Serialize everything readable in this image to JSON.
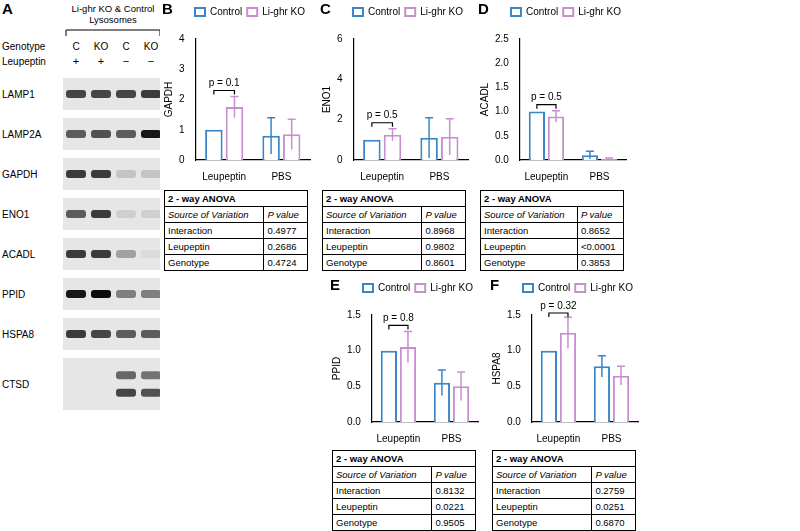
{
  "blot": {
    "panel": "A",
    "header": [
      "Li-ghr KO & Control",
      "Lysosomes"
    ],
    "row_labels": [
      "Genotype",
      "Leupeptin"
    ],
    "genotype": [
      "C",
      "KO",
      "C",
      "KO"
    ],
    "leupeptin": [
      "+",
      "+",
      "−",
      "−"
    ],
    "proteins": [
      {
        "name": "LAMP1",
        "bands": [
          [
            0.7,
            0.7,
            0.7,
            0.75
          ]
        ]
      },
      {
        "name": "LAMP2A",
        "bands": [
          [
            0.6,
            0.65,
            0.6,
            0.9
          ]
        ]
      },
      {
        "name": "GAPDH",
        "bands": [
          [
            0.75,
            0.75,
            0.15,
            0.15
          ]
        ]
      },
      {
        "name": "ENO1",
        "bands": [
          [
            0.6,
            0.75,
            0.1,
            0.1
          ]
        ]
      },
      {
        "name": "ACADL",
        "bands": [
          [
            0.75,
            0.75,
            0.3,
            0.05
          ]
        ]
      },
      {
        "name": "PPID",
        "bands": [
          [
            0.9,
            0.95,
            0.45,
            0.45
          ]
        ]
      },
      {
        "name": "HSPA8",
        "bands": [
          [
            0.75,
            0.7,
            0.6,
            0.6
          ]
        ]
      },
      {
        "name": "CTSD",
        "bands": [
          [
            0,
            0,
            0.55,
            0.5
          ],
          [
            0,
            0,
            0.7,
            0.65
          ]
        ]
      }
    ]
  },
  "chart_data": [
    {
      "type": "bar",
      "panel": "B",
      "ylabel": "GAPDH",
      "categories": [
        "Leupeptin",
        "PBS"
      ],
      "series": [
        {
          "name": "Control",
          "color": "#3a86c8",
          "values": [
            1.0,
            0.8
          ],
          "errors": [
            0,
            0.6
          ]
        },
        {
          "name": "Li-ghr KO",
          "color": "#c88fd0",
          "values": [
            1.75,
            0.85
          ],
          "errors": [
            0.35,
            0.5
          ]
        }
      ],
      "ylim": [
        0,
        4
      ],
      "yticks": [
        0,
        1,
        2,
        3,
        4
      ],
      "grid": false,
      "legend": "top right",
      "annotation": {
        "text": "p = 0.1",
        "category": "Leupeptin"
      },
      "anova": {
        "title": "2 - way ANOVA",
        "header": [
          "Source of Variation",
          "P value"
        ],
        "rows": [
          [
            "Interaction",
            "0.4977"
          ],
          [
            "Leupeptin",
            "0.2686"
          ],
          [
            "Genotype",
            "0.4724"
          ]
        ]
      }
    },
    {
      "type": "bar",
      "panel": "C",
      "ylabel": "ENO1",
      "categories": [
        "Leupeptin",
        "PBS"
      ],
      "series": [
        {
          "name": "Control",
          "color": "#3a86c8",
          "values": [
            1.0,
            1.1
          ],
          "errors": [
            0,
            1.0
          ]
        },
        {
          "name": "Li-ghr KO",
          "color": "#c88fd0",
          "values": [
            1.25,
            1.15
          ],
          "errors": [
            0.3,
            0.9
          ]
        }
      ],
      "ylim": [
        0,
        6
      ],
      "yticks": [
        0,
        2,
        4,
        6
      ],
      "grid": false,
      "legend": "top right",
      "annotation": {
        "text": "p = 0.5",
        "category": "Leupeptin"
      },
      "anova": {
        "title": "2 - way ANOVA",
        "header": [
          "Source of Variation",
          "P value"
        ],
        "rows": [
          [
            "Interaction",
            "0.8968"
          ],
          [
            "Leupeptin",
            "0.9802"
          ],
          [
            "Genotype",
            "0.8601"
          ]
        ]
      }
    },
    {
      "type": "bar",
      "panel": "D",
      "ylabel": "ACADL",
      "categories": [
        "Leupeptin",
        "PBS"
      ],
      "series": [
        {
          "name": "Control",
          "color": "#3a86c8",
          "values": [
            1.0,
            0.1
          ],
          "errors": [
            0,
            0.08
          ]
        },
        {
          "name": "Li-ghr KO",
          "color": "#c88fd0",
          "values": [
            0.9,
            0.02
          ],
          "errors": [
            0.12,
            0.02
          ]
        }
      ],
      "ylim": [
        0,
        2.5
      ],
      "yticks": [
        {
          "value": 0,
          "label": "0.0"
        },
        0.5,
        {
          "value": 1,
          "label": "1.0"
        },
        1.5,
        {
          "value": 2,
          "label": "2.0"
        },
        2.5
      ],
      "grid": false,
      "legend": "top right",
      "annotation": {
        "text": "p = 0.5",
        "category": "Leupeptin"
      },
      "anova": {
        "title": "2 - way ANOVA",
        "header": [
          "Source of Variation",
          "P value"
        ],
        "rows": [
          [
            "Interaction",
            "0.8652"
          ],
          [
            "Leupeptin",
            "<0.0001"
          ],
          [
            "Genotype",
            "0.3853"
          ]
        ]
      }
    },
    {
      "type": "bar",
      "panel": "E",
      "ylabel": "PPID",
      "categories": [
        "Leupeptin",
        "PBS"
      ],
      "series": [
        {
          "name": "Control",
          "color": "#3a86c8",
          "values": [
            1.0,
            0.55
          ],
          "errors": [
            0,
            0.18
          ]
        },
        {
          "name": "Li-ghr KO",
          "color": "#c88fd0",
          "values": [
            1.05,
            0.5
          ],
          "errors": [
            0.22,
            0.2
          ]
        }
      ],
      "ylim": [
        0,
        1.5
      ],
      "yticks": [
        {
          "value": 0,
          "label": "0.0"
        },
        0.5,
        {
          "value": 1,
          "label": "1.0"
        },
        1.5
      ],
      "grid": false,
      "legend": "top right",
      "annotation": {
        "text": "p = 0.8",
        "category": "Leupeptin"
      },
      "anova": {
        "title": "2 - way ANOVA",
        "header": [
          "Source of Variation",
          "P value"
        ],
        "rows": [
          [
            "Interaction",
            "0.8132"
          ],
          [
            "Leupeptin",
            "0.0221"
          ],
          [
            "Genotype",
            "0.9505"
          ]
        ]
      }
    },
    {
      "type": "bar",
      "panel": "F",
      "ylabel": "HSPA8",
      "categories": [
        "Leupeptin",
        "PBS"
      ],
      "series": [
        {
          "name": "Control",
          "color": "#3a86c8",
          "values": [
            1.0,
            0.78
          ],
          "errors": [
            0,
            0.15
          ]
        },
        {
          "name": "Li-ghr KO",
          "color": "#c88fd0",
          "values": [
            1.25,
            0.65
          ],
          "errors": [
            0.22,
            0.13
          ]
        }
      ],
      "ylim": [
        0,
        1.5
      ],
      "yticks": [
        {
          "value": 0,
          "label": "0.0"
        },
        0.5,
        {
          "value": 1,
          "label": "1.0"
        },
        1.5
      ],
      "grid": false,
      "legend": "top right",
      "annotation": {
        "text": "p = 0.32",
        "category": "Leupeptin"
      },
      "anova": {
        "title": "2 - way ANOVA",
        "header": [
          "Source of Variation",
          "P value"
        ],
        "rows": [
          [
            "Interaction",
            "0.2759"
          ],
          [
            "Leupeptin",
            "0.0251"
          ],
          [
            "Genotype",
            "0.6870"
          ]
        ]
      }
    }
  ]
}
